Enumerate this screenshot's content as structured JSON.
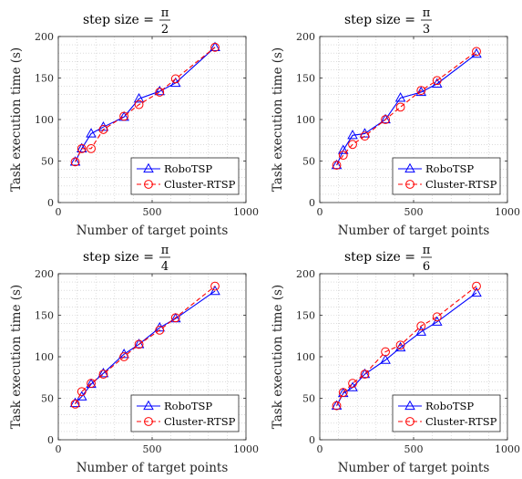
{
  "chart_data": [
    {
      "type": "line",
      "title_prefix": "step size =",
      "title_num": "π",
      "title_den": "2",
      "xlabel": "Number of target points",
      "ylabel": "Task execution time (s)",
      "xlim": [
        0,
        1000
      ],
      "ylim": [
        0,
        200
      ],
      "xticks": [
        0,
        500,
        1000
      ],
      "yticks": [
        0,
        50,
        100,
        150,
        200
      ],
      "grid": true,
      "legend": "bottom-right",
      "series": [
        {
          "name": "RoboTSP",
          "color": "#0000ff",
          "marker": "triangle",
          "dash": "solid",
          "x": [
            90,
            125,
            175,
            240,
            350,
            430,
            540,
            625,
            835
          ],
          "y": [
            49,
            65,
            83,
            91,
            103,
            125,
            134,
            144,
            187
          ]
        },
        {
          "name": "Cluster-RTSP",
          "color": "#ff0000",
          "marker": "circle",
          "dash": "dashed",
          "x": [
            90,
            125,
            175,
            240,
            350,
            430,
            540,
            625,
            835
          ],
          "y": [
            49,
            65,
            65,
            88,
            104,
            118,
            133,
            149,
            187
          ]
        }
      ]
    },
    {
      "type": "line",
      "title_prefix": "step size =",
      "title_num": "π",
      "title_den": "3",
      "xlabel": "Number of target points",
      "ylabel": "Task execution time (s)",
      "xlim": [
        0,
        1000
      ],
      "ylim": [
        0,
        200
      ],
      "xticks": [
        0,
        500,
        1000
      ],
      "yticks": [
        0,
        50,
        100,
        150,
        200
      ],
      "grid": true,
      "legend": "bottom-right",
      "series": [
        {
          "name": "RoboTSP",
          "color": "#0000ff",
          "marker": "triangle",
          "dash": "solid",
          "x": [
            90,
            125,
            175,
            240,
            350,
            430,
            540,
            625,
            835
          ],
          "y": [
            45,
            63,
            81,
            83,
            100,
            126,
            133,
            143,
            179
          ]
        },
        {
          "name": "Cluster-RTSP",
          "color": "#ff0000",
          "marker": "circle",
          "dash": "dashed",
          "x": [
            90,
            125,
            175,
            240,
            350,
            430,
            540,
            625,
            835
          ],
          "y": [
            45,
            57,
            70,
            80,
            100,
            115,
            135,
            147,
            182
          ]
        }
      ]
    },
    {
      "type": "line",
      "title_prefix": "step size =",
      "title_num": "π",
      "title_den": "4",
      "xlabel": "Number of target points",
      "ylabel": "Task execution time (s)",
      "xlim": [
        0,
        1000
      ],
      "ylim": [
        0,
        200
      ],
      "xticks": [
        0,
        500,
        1000
      ],
      "yticks": [
        0,
        50,
        100,
        150,
        200
      ],
      "grid": true,
      "legend": "bottom-right",
      "series": [
        {
          "name": "RoboTSP",
          "color": "#0000ff",
          "marker": "triangle",
          "dash": "solid",
          "x": [
            90,
            125,
            175,
            240,
            350,
            430,
            540,
            625,
            835
          ],
          "y": [
            44,
            52,
            67,
            80,
            103,
            115,
            135,
            146,
            179
          ]
        },
        {
          "name": "Cluster-RTSP",
          "color": "#ff0000",
          "marker": "circle",
          "dash": "dashed",
          "x": [
            90,
            125,
            175,
            240,
            350,
            430,
            540,
            625,
            835
          ],
          "y": [
            43,
            58,
            68,
            79,
            100,
            115,
            132,
            147,
            185
          ]
        }
      ]
    },
    {
      "type": "line",
      "title_prefix": "step size =",
      "title_num": "π",
      "title_den": "6",
      "xlabel": "Number of target points",
      "ylabel": "Task execution time (s)",
      "xlim": [
        0,
        1000
      ],
      "ylim": [
        0,
        200
      ],
      "xticks": [
        0,
        500,
        1000
      ],
      "yticks": [
        0,
        50,
        100,
        150,
        200
      ],
      "grid": true,
      "legend": "bottom-right",
      "series": [
        {
          "name": "RoboTSP",
          "color": "#0000ff",
          "marker": "triangle",
          "dash": "solid",
          "x": [
            90,
            125,
            175,
            240,
            350,
            430,
            540,
            625,
            835
          ],
          "y": [
            41,
            56,
            63,
            79,
            96,
            111,
            130,
            142,
            177
          ]
        },
        {
          "name": "Cluster-RTSP",
          "color": "#ff0000",
          "marker": "circle",
          "dash": "dashed",
          "x": [
            90,
            125,
            175,
            240,
            350,
            430,
            540,
            625,
            835
          ],
          "y": [
            41,
            57,
            68,
            79,
            106,
            114,
            137,
            148,
            185
          ]
        }
      ]
    }
  ]
}
